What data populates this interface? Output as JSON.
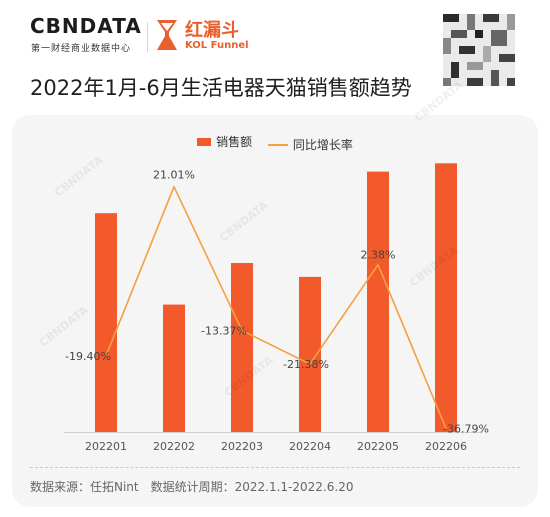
{
  "header": {
    "logo_cbn": "CBNDATA",
    "logo_cbn_sub": "第一财经商业数据中心",
    "logo_kol_cn": "红漏斗",
    "logo_kol_en": "KOL Funnel"
  },
  "title": "2022年1月-6月生活电器天猫销售额趋势",
  "legend": {
    "bar": "销售额",
    "line": "同比增长率"
  },
  "footer": "数据来源：任拓Nint　数据统计周期：2022.1.1-2022.6.20",
  "watermark": "CBNDATA",
  "colors": {
    "bar": "#f25a2c",
    "line": "#f5a042",
    "accent": "#e8602d"
  },
  "chart_data": {
    "type": "bar",
    "title": "2022年1月-6月生活电器天猫销售额趋势",
    "categories": [
      "202201",
      "202202",
      "202203",
      "202204",
      "202205",
      "202206"
    ],
    "series": [
      {
        "name": "销售额",
        "type": "bar",
        "values": [
          79,
          46,
          61,
          56,
          94,
          97
        ]
      },
      {
        "name": "同比增长率",
        "type": "line",
        "values": [
          -19.4,
          21.01,
          -13.37,
          -21.38,
          2.38,
          -36.79
        ],
        "labels": [
          "-19.40%",
          "21.01%",
          "-13.37%",
          "-21.38%",
          "2.38%",
          "-36.79%"
        ]
      }
    ],
    "ylim": [
      0,
      100
    ],
    "y2lim": [
      -40,
      25
    ],
    "grid": false,
    "legend_position": "top"
  }
}
